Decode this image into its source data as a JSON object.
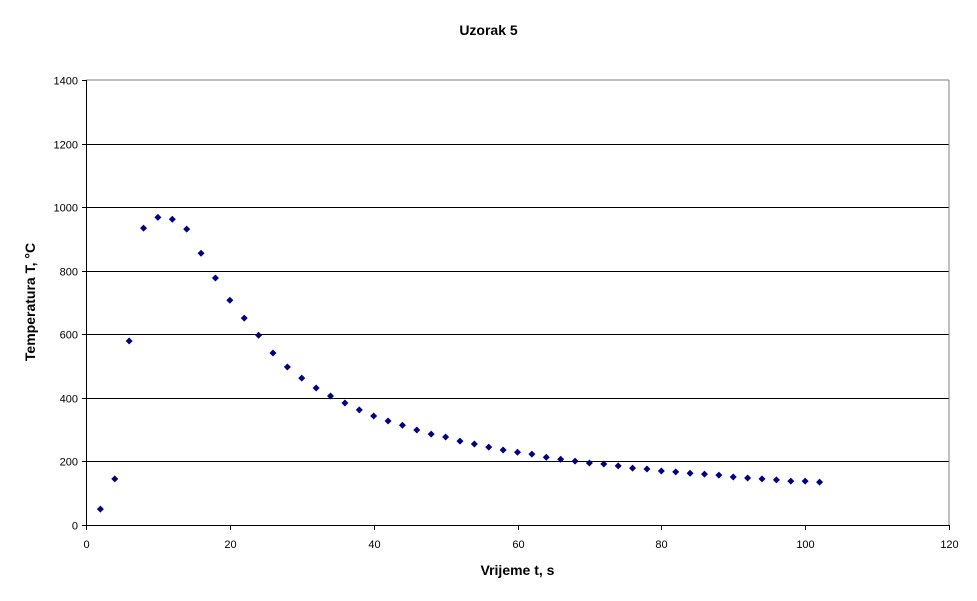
{
  "chart_data": {
    "type": "scatter",
    "title": "Uzorak 5",
    "xlabel": "Vrijeme t, s",
    "ylabel": "Temperatura T, °C",
    "xlim": [
      0,
      120
    ],
    "ylim": [
      0,
      1400
    ],
    "x_ticks": [
      0,
      20,
      40,
      60,
      80,
      100,
      120
    ],
    "y_ticks": [
      0,
      200,
      400,
      600,
      800,
      1000,
      1200,
      1400
    ],
    "grid": {
      "horizontal": true,
      "vertical": false
    },
    "legend": null,
    "series": [
      {
        "name": "Uzorak 5",
        "marker": "diamond",
        "color": "#000080",
        "x": [
          2,
          4,
          6,
          8,
          10,
          12,
          14,
          16,
          18,
          20,
          22,
          24,
          26,
          28,
          30,
          32,
          34,
          36,
          38,
          40,
          42,
          44,
          46,
          48,
          50,
          52,
          54,
          56,
          58,
          60,
          62,
          64,
          66,
          68,
          70,
          72,
          74,
          76,
          78,
          80,
          82,
          84,
          86,
          88,
          90,
          92,
          94,
          96,
          98,
          100,
          102
        ],
        "y": [
          50,
          145,
          579,
          934,
          968,
          962,
          931,
          855,
          777,
          707,
          651,
          597,
          541,
          497,
          462,
          431,
          406,
          384,
          362,
          343,
          327,
          314,
          299,
          286,
          277,
          264,
          255,
          245,
          236,
          229,
          223,
          213,
          207,
          201,
          195,
          192,
          186,
          179,
          176,
          170,
          167,
          163,
          160,
          157,
          151,
          148,
          145,
          142,
          138,
          138,
          135
        ]
      }
    ]
  },
  "colors": {
    "background": "#ffffff",
    "plot_border": "#808080",
    "gridline": "#000000",
    "axis": "#000000",
    "marker": "#000080"
  }
}
